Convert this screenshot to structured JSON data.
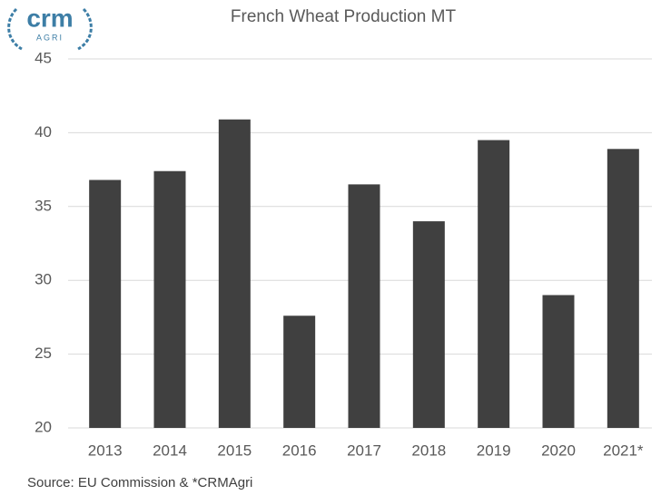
{
  "logo": {
    "name": "crm",
    "subname": "AGRI"
  },
  "chart_data": {
    "type": "bar",
    "title": "French Wheat Production MT",
    "categories": [
      "2013",
      "2014",
      "2015",
      "2016",
      "2017",
      "2018",
      "2019",
      "2020",
      "2021*"
    ],
    "values": [
      36.8,
      37.4,
      40.9,
      27.6,
      36.5,
      34.0,
      39.5,
      29.0,
      38.9
    ],
    "color": "#404040",
    "ylim": [
      20,
      45
    ],
    "yticks": [
      20,
      25,
      30,
      35,
      40,
      45
    ],
    "grid": true
  },
  "source": "Source: EU Commission & *CRMAgri"
}
